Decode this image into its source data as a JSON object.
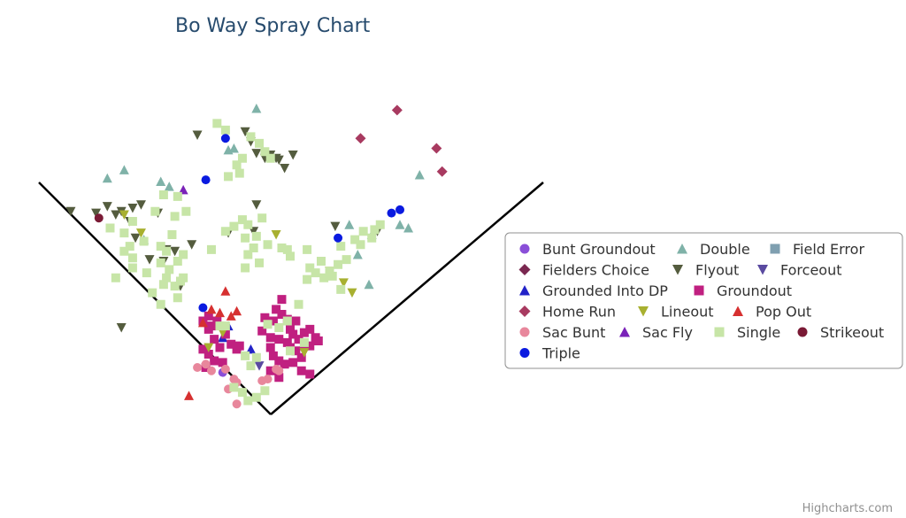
{
  "chart_data": {
    "type": "scatter",
    "title": "Bo Way Spray Chart",
    "xlabel": "",
    "ylabel": "",
    "xlim": [
      0,
      100
    ],
    "ylim": [
      0,
      100
    ],
    "grid": false,
    "legend_position": "right",
    "credits": "Highcharts.com",
    "series": [
      {
        "name": "Bunt Groundout",
        "marker": "circle",
        "color": "#8a4fd8",
        "points": [
          [
            38.0,
            14.5
          ]
        ]
      },
      {
        "name": "Double",
        "marker": "triangle",
        "color": "#7fb2a8",
        "points": [
          [
            44.0,
            94.0
          ],
          [
            20.5,
            75.5
          ],
          [
            17.5,
            73.0
          ],
          [
            27.0,
            72.0
          ],
          [
            28.5,
            70.5
          ],
          [
            24.0,
            54.5
          ],
          [
            39.0,
            81.5
          ],
          [
            40.0,
            82.0
          ],
          [
            60.5,
            59.0
          ],
          [
            64.5,
            56.0
          ],
          [
            62.0,
            50.0
          ],
          [
            73.0,
            74.0
          ],
          [
            69.5,
            59.0
          ],
          [
            71.0,
            58.0
          ],
          [
            64.0,
            41.0
          ]
        ]
      },
      {
        "name": "Field Error",
        "marker": "square",
        "color": "#7f9fb0",
        "points": []
      },
      {
        "name": "Fielders Choice",
        "marker": "diamond",
        "color": "#7a2850",
        "points": []
      },
      {
        "name": "Flyout",
        "marker": "triangle-down",
        "color": "#545c3e",
        "points": [
          [
            33.5,
            86.0
          ],
          [
            42.0,
            87.0
          ],
          [
            43.0,
            84.0
          ],
          [
            44.0,
            80.5
          ],
          [
            45.5,
            79.0
          ],
          [
            46.5,
            80.0
          ],
          [
            47.5,
            79.0
          ],
          [
            48.0,
            78.5
          ],
          [
            49.0,
            76.0
          ],
          [
            50.5,
            80.0
          ],
          [
            11.0,
            63.0
          ],
          [
            15.5,
            62.5
          ],
          [
            17.5,
            64.5
          ],
          [
            19.0,
            62.0
          ],
          [
            20.0,
            63.0
          ],
          [
            22.0,
            64.0
          ],
          [
            23.5,
            65.0
          ],
          [
            26.5,
            62.5
          ],
          [
            32.5,
            53.0
          ],
          [
            29.5,
            51.0
          ],
          [
            25.0,
            48.5
          ],
          [
            27.5,
            48.0
          ],
          [
            30.5,
            40.5
          ],
          [
            21.5,
            60.0
          ],
          [
            39.0,
            56.5
          ],
          [
            43.5,
            57.0
          ],
          [
            44.0,
            65.0
          ],
          [
            58.0,
            58.5
          ],
          [
            65.5,
            57.0
          ],
          [
            20.0,
            28.0
          ],
          [
            22.5,
            55.0
          ],
          [
            28.0,
            51.5
          ]
        ]
      },
      {
        "name": "Forceout",
        "marker": "triangle-down",
        "color": "#5a4aa0",
        "points": [
          [
            44.5,
            16.5
          ]
        ]
      },
      {
        "name": "Grounded Into DP",
        "marker": "triangle",
        "color": "#2222c8",
        "points": [
          [
            39.0,
            28.5
          ],
          [
            38.0,
            25.0
          ],
          [
            43.0,
            21.5
          ]
        ]
      },
      {
        "name": "Groundout",
        "marker": "square",
        "color": "#c02080",
        "points": [
          [
            36.0,
            28.5
          ],
          [
            37.0,
            30.0
          ],
          [
            35.5,
            27.5
          ],
          [
            38.5,
            26.0
          ],
          [
            36.5,
            24.5
          ],
          [
            34.5,
            21.5
          ],
          [
            35.5,
            20.0
          ],
          [
            37.5,
            22.0
          ],
          [
            39.5,
            23.0
          ],
          [
            40.5,
            21.5
          ],
          [
            41.0,
            22.5
          ],
          [
            36.5,
            18.0
          ],
          [
            35.0,
            16.0
          ],
          [
            38.0,
            17.5
          ],
          [
            45.5,
            31.0
          ],
          [
            47.0,
            30.0
          ],
          [
            48.5,
            32.0
          ],
          [
            49.5,
            30.5
          ],
          [
            46.5,
            25.0
          ],
          [
            48.0,
            24.5
          ],
          [
            49.5,
            23.5
          ],
          [
            50.5,
            26.0
          ],
          [
            51.5,
            24.5
          ],
          [
            50.0,
            22.0
          ],
          [
            51.0,
            21.0
          ],
          [
            52.5,
            22.5
          ],
          [
            53.5,
            22.5
          ],
          [
            47.0,
            19.5
          ],
          [
            48.0,
            18.0
          ],
          [
            49.0,
            17.0
          ],
          [
            50.5,
            17.5
          ],
          [
            52.0,
            15.0
          ],
          [
            53.5,
            14.0
          ],
          [
            52.0,
            19.0
          ],
          [
            47.5,
            33.5
          ],
          [
            48.5,
            36.5
          ],
          [
            51.0,
            30.0
          ],
          [
            46.5,
            15.0
          ],
          [
            48.0,
            13.0
          ],
          [
            46.5,
            22.0
          ],
          [
            34.5,
            30.0
          ],
          [
            35.5,
            31.5
          ],
          [
            52.5,
            26.5
          ],
          [
            54.5,
            25.0
          ],
          [
            53.5,
            27.5
          ],
          [
            50.0,
            27.5
          ],
          [
            45.0,
            27.0
          ],
          [
            55.0,
            24.0
          ]
        ]
      },
      {
        "name": "Home Run",
        "marker": "diamond",
        "color": "#a83a60",
        "points": [
          [
            62.5,
            85.0
          ],
          [
            69.0,
            93.5
          ],
          [
            76.0,
            82.0
          ],
          [
            77.0,
            75.0
          ]
        ]
      },
      {
        "name": "Lineout",
        "marker": "triangle-down",
        "color": "#a8b030",
        "points": [
          [
            20.5,
            62.0
          ],
          [
            23.5,
            56.5
          ],
          [
            47.5,
            56.0
          ],
          [
            59.5,
            41.5
          ],
          [
            61.0,
            38.5
          ],
          [
            57.0,
            45.0
          ],
          [
            35.5,
            22.0
          ],
          [
            38.0,
            26.5
          ],
          [
            52.5,
            20.5
          ]
        ]
      },
      {
        "name": "Pop Out",
        "marker": "triangle",
        "color": "#d63030",
        "points": [
          [
            38.5,
            39.0
          ],
          [
            37.5,
            32.5
          ],
          [
            39.5,
            31.5
          ],
          [
            40.5,
            33.0
          ],
          [
            36.0,
            33.5
          ],
          [
            32.0,
            7.5
          ],
          [
            34.5,
            29.5
          ]
        ]
      },
      {
        "name": "Sac Bunt",
        "marker": "circle",
        "color": "#e8879c",
        "points": [
          [
            33.5,
            16.0
          ],
          [
            35.0,
            17.0
          ],
          [
            38.5,
            15.5
          ],
          [
            40.0,
            12.5
          ],
          [
            40.5,
            11.5
          ],
          [
            39.0,
            9.5
          ],
          [
            40.5,
            5.0
          ],
          [
            46.0,
            12.5
          ],
          [
            45.0,
            12.0
          ],
          [
            48.0,
            15.0
          ],
          [
            47.5,
            15.5
          ],
          [
            36.0,
            15.0
          ]
        ]
      },
      {
        "name": "Sac Fly",
        "marker": "triangle",
        "color": "#7a22b8",
        "points": [
          [
            31.0,
            69.5
          ]
        ]
      },
      {
        "name": "Single",
        "marker": "square",
        "color": "#c7e5a7",
        "points": [
          [
            37.0,
            89.5
          ],
          [
            38.5,
            87.5
          ],
          [
            43.0,
            85.5
          ],
          [
            44.5,
            83.5
          ],
          [
            45.5,
            81.0
          ],
          [
            46.5,
            79.0
          ],
          [
            41.5,
            79.0
          ],
          [
            40.5,
            77.0
          ],
          [
            41.0,
            74.5
          ],
          [
            39.0,
            73.5
          ],
          [
            30.0,
            67.5
          ],
          [
            27.5,
            68.0
          ],
          [
            31.5,
            63.0
          ],
          [
            29.5,
            61.5
          ],
          [
            26.0,
            63.0
          ],
          [
            22.0,
            60.0
          ],
          [
            18.0,
            58.0
          ],
          [
            20.5,
            56.5
          ],
          [
            24.0,
            54.0
          ],
          [
            21.5,
            52.5
          ],
          [
            20.5,
            51.0
          ],
          [
            22.0,
            49.0
          ],
          [
            28.0,
            51.0
          ],
          [
            30.0,
            48.0
          ],
          [
            27.0,
            47.5
          ],
          [
            24.5,
            44.5
          ],
          [
            28.0,
            43.0
          ],
          [
            27.5,
            41.0
          ],
          [
            29.5,
            40.5
          ],
          [
            31.0,
            43.0
          ],
          [
            30.0,
            37.0
          ],
          [
            36.0,
            51.5
          ],
          [
            40.0,
            58.5
          ],
          [
            41.5,
            60.5
          ],
          [
            42.5,
            59.0
          ],
          [
            45.0,
            61.0
          ],
          [
            38.5,
            57.0
          ],
          [
            42.0,
            55.0
          ],
          [
            44.0,
            55.5
          ],
          [
            46.0,
            53.0
          ],
          [
            48.5,
            52.0
          ],
          [
            49.5,
            51.5
          ],
          [
            43.5,
            52.0
          ],
          [
            42.5,
            50.0
          ],
          [
            42.0,
            46.0
          ],
          [
            44.5,
            47.5
          ],
          [
            50.0,
            49.5
          ],
          [
            53.0,
            51.5
          ],
          [
            53.5,
            46.0
          ],
          [
            54.5,
            44.5
          ],
          [
            55.5,
            48.0
          ],
          [
            57.0,
            45.0
          ],
          [
            58.5,
            47.0
          ],
          [
            57.5,
            43.5
          ],
          [
            60.0,
            48.5
          ],
          [
            59.0,
            52.5
          ],
          [
            61.5,
            54.5
          ],
          [
            63.0,
            57.0
          ],
          [
            64.5,
            55.0
          ],
          [
            62.5,
            53.0
          ],
          [
            65.0,
            57.5
          ],
          [
            66.0,
            59.0
          ],
          [
            53.0,
            42.5
          ],
          [
            56.0,
            43.0
          ],
          [
            59.0,
            39.5
          ],
          [
            51.5,
            35.0
          ],
          [
            49.5,
            30.0
          ],
          [
            48.0,
            28.0
          ],
          [
            46.0,
            29.0
          ],
          [
            44.0,
            19.0
          ],
          [
            42.0,
            19.5
          ],
          [
            43.0,
            16.5
          ],
          [
            40.0,
            10.0
          ],
          [
            41.5,
            8.5
          ],
          [
            44.0,
            7.0
          ],
          [
            45.5,
            9.0
          ],
          [
            42.5,
            6.0
          ],
          [
            50.0,
            21.0
          ],
          [
            52.5,
            23.5
          ],
          [
            38.5,
            28.5
          ],
          [
            37.5,
            28.5
          ],
          [
            30.5,
            42.0
          ],
          [
            28.5,
            45.5
          ],
          [
            27.0,
            52.5
          ],
          [
            31.0,
            50.0
          ],
          [
            29.0,
            56.0
          ],
          [
            22.0,
            46.0
          ],
          [
            19.0,
            43.0
          ],
          [
            25.5,
            38.5
          ],
          [
            27.0,
            35.0
          ]
        ]
      },
      {
        "name": "Strikeout",
        "marker": "circle",
        "color": "#7a1a35",
        "points": [
          [
            16.0,
            61.0
          ]
        ]
      },
      {
        "name": "Triple",
        "marker": "circle",
        "color": "#0a1ae0",
        "points": [
          [
            38.5,
            85.0
          ],
          [
            35.0,
            72.5
          ],
          [
            58.5,
            55.0
          ],
          [
            68.0,
            62.5
          ],
          [
            69.5,
            63.5
          ],
          [
            34.5,
            34.0
          ]
        ]
      }
    ]
  }
}
